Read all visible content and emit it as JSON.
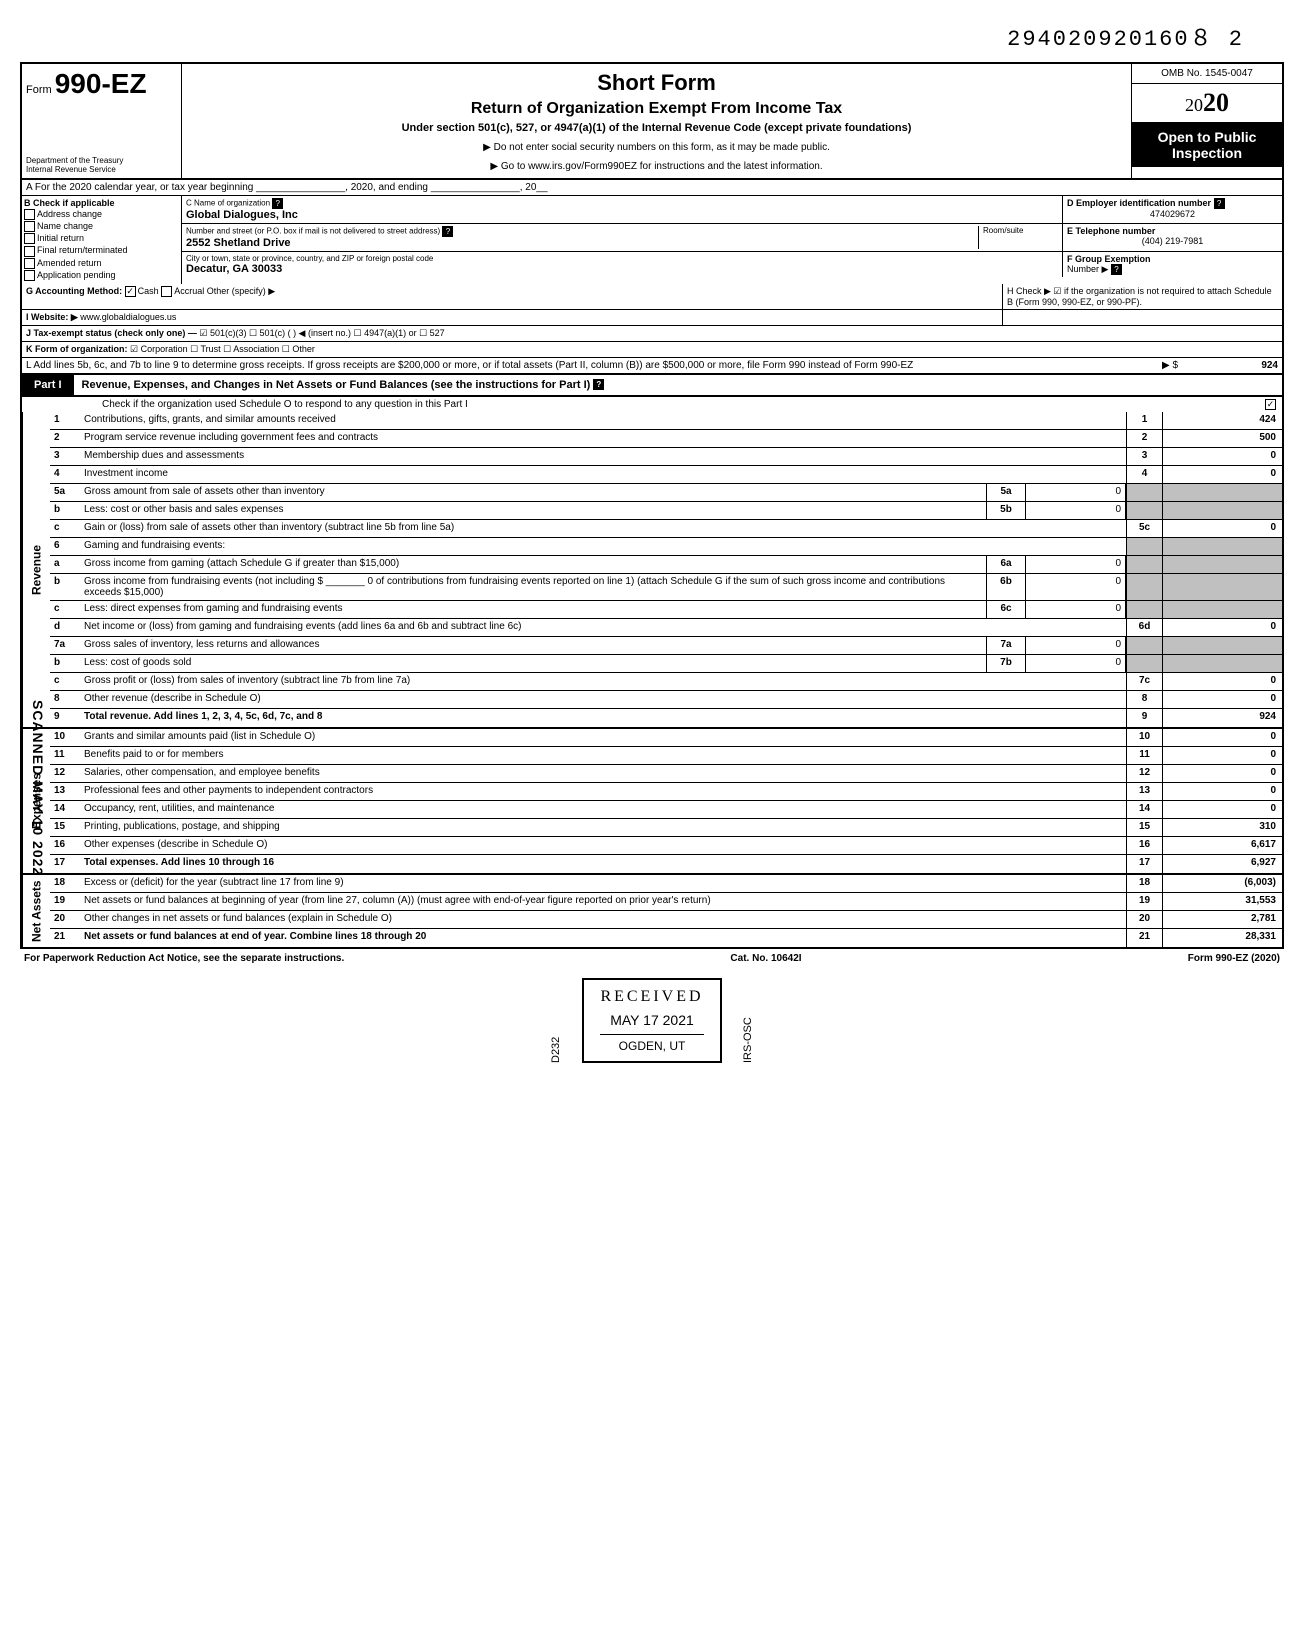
{
  "doc_number": "294020920160８ 2",
  "header": {
    "form_prefix": "Form",
    "form_number": "990-EZ",
    "title": "Short Form",
    "subtitle": "Return of Organization Exempt From Income Tax",
    "under": "Under section 501(c), 527, or 4947(a)(1) of the Internal Revenue Code (except private foundations)",
    "note1": "▶ Do not enter social security numbers on this form, as it may be made public.",
    "note2": "▶ Go to www.irs.gov/Form990EZ for instructions and the latest information.",
    "dept": "Department of the Treasury\nInternal Revenue Service",
    "omb": "OMB No. 1545-0047",
    "year": "2020",
    "year_prefix": "20",
    "open_public": "Open to Public Inspection"
  },
  "row_a": "A For the 2020 calendar year, or tax year beginning ________________, 2020, and ending ________________, 20__",
  "section_b": {
    "title": "B Check if applicable",
    "items": [
      "Address change",
      "Name change",
      "Initial return",
      "Final return/terminated",
      "Amended return",
      "Application pending"
    ]
  },
  "org": {
    "c_label": "C Name of organization",
    "c_value": "Global Dialogues, Inc",
    "addr_label": "Number and street (or P.O. box if mail is not delivered to street address)",
    "addr_value": "2552 Shetland Drive",
    "room_label": "Room/suite",
    "city_label": "City or town, state or province, country, and ZIP or foreign postal code",
    "city_value": "Decatur, GA 30033",
    "d_label": "D Employer identification number",
    "d_value": "474029672",
    "e_label": "E Telephone number",
    "e_value": "(404) 219-7981",
    "f_label": "F Group Exemption",
    "f_label2": "Number ▶"
  },
  "row_g": {
    "label": "G Accounting Method:",
    "cash": "Cash",
    "accrual": "Accrual",
    "other": "Other (specify) ▶"
  },
  "row_h": {
    "text": "H Check ▶ ☑ if the organization is not required to attach Schedule B (Form 990, 990-EZ, or 990-PF)."
  },
  "row_i": {
    "label": "I Website: ▶",
    "value": "www.globaldialogues.us"
  },
  "row_j": {
    "label": "J Tax-exempt status (check only one) —",
    "opts": "☑ 501(c)(3)   ☐ 501(c) (   ) ◀ (insert no.)  ☐ 4947(a)(1) or  ☐ 527"
  },
  "row_k": {
    "label": "K Form of organization:",
    "opts": "☑ Corporation   ☐ Trust   ☐ Association   ☐ Other"
  },
  "row_l": {
    "text": "L Add lines 5b, 6c, and 7b to line 9 to determine gross receipts. If gross receipts are $200,000 or more, or if total assets (Part II, column (B)) are $500,000 or more, file Form 990 instead of Form 990-EZ",
    "value": "924"
  },
  "part1": {
    "label": "Part I",
    "title": "Revenue, Expenses, and Changes in Net Assets or Fund Balances (see the instructions for Part I)",
    "sub": "Check if the organization used Schedule O to respond to any question in this Part I"
  },
  "scanned": "SCANNED MAY 10 2022",
  "sections": {
    "revenue": "Revenue",
    "expenses": "Expenses",
    "netassets": "Net Assets"
  },
  "lines": [
    {
      "n": "1",
      "d": "Contributions, gifts, grants, and similar amounts received",
      "b": "1",
      "v": "424"
    },
    {
      "n": "2",
      "d": "Program service revenue including government fees and contracts",
      "b": "2",
      "v": "500"
    },
    {
      "n": "3",
      "d": "Membership dues and assessments",
      "b": "3",
      "v": "0"
    },
    {
      "n": "4",
      "d": "Investment income",
      "b": "4",
      "v": "0"
    },
    {
      "n": "5a",
      "d": "Gross amount from sale of assets other than inventory",
      "mb": "5a",
      "mv": "0"
    },
    {
      "n": "b",
      "d": "Less: cost or other basis and sales expenses",
      "mb": "5b",
      "mv": "0"
    },
    {
      "n": "c",
      "d": "Gain or (loss) from sale of assets other than inventory (subtract line 5b from line 5a)",
      "b": "5c",
      "v": "0"
    },
    {
      "n": "6",
      "d": "Gaming and fundraising events:"
    },
    {
      "n": "a",
      "d": "Gross income from gaming (attach Schedule G if greater than $15,000)",
      "mb": "6a",
      "mv": "0"
    },
    {
      "n": "b",
      "d": "Gross income from fundraising events (not including  $ _______ 0 of contributions from fundraising events reported on line 1) (attach Schedule G if the sum of such gross income and contributions exceeds $15,000)",
      "mb": "6b",
      "mv": "0"
    },
    {
      "n": "c",
      "d": "Less: direct expenses from gaming and fundraising events",
      "mb": "6c",
      "mv": "0"
    },
    {
      "n": "d",
      "d": "Net income or (loss) from gaming and fundraising events (add lines 6a and 6b and subtract line 6c)",
      "b": "6d",
      "v": "0"
    },
    {
      "n": "7a",
      "d": "Gross sales of inventory, less returns and allowances",
      "mb": "7a",
      "mv": "0"
    },
    {
      "n": "b",
      "d": "Less: cost of goods sold",
      "mb": "7b",
      "mv": "0"
    },
    {
      "n": "c",
      "d": "Gross profit or (loss) from sales of inventory (subtract line 7b from line 7a)",
      "b": "7c",
      "v": "0"
    },
    {
      "n": "8",
      "d": "Other revenue (describe in Schedule O)",
      "b": "8",
      "v": "0"
    },
    {
      "n": "9",
      "d": "Total revenue. Add lines 1, 2, 3, 4, 5c, 6d, 7c, and 8",
      "b": "9",
      "v": "924",
      "bold": true
    },
    {
      "n": "10",
      "d": "Grants and similar amounts paid (list in Schedule O)",
      "b": "10",
      "v": "0"
    },
    {
      "n": "11",
      "d": "Benefits paid to or for members",
      "b": "11",
      "v": "0"
    },
    {
      "n": "12",
      "d": "Salaries, other compensation, and employee benefits",
      "b": "12",
      "v": "0"
    },
    {
      "n": "13",
      "d": "Professional fees and other payments to independent contractors",
      "b": "13",
      "v": "0"
    },
    {
      "n": "14",
      "d": "Occupancy, rent, utilities, and maintenance",
      "b": "14",
      "v": "0"
    },
    {
      "n": "15",
      "d": "Printing, publications, postage, and shipping",
      "b": "15",
      "v": "310"
    },
    {
      "n": "16",
      "d": "Other expenses (describe in Schedule O)",
      "b": "16",
      "v": "6,617"
    },
    {
      "n": "17",
      "d": "Total expenses. Add lines 10 through 16",
      "b": "17",
      "v": "6,927",
      "bold": true
    },
    {
      "n": "18",
      "d": "Excess or (deficit) for the year (subtract line 17 from line 9)",
      "b": "18",
      "v": "(6,003)"
    },
    {
      "n": "19",
      "d": "Net assets or fund balances at beginning of year (from line 27, column (A)) (must agree with end-of-year figure reported on prior year's return)",
      "b": "19",
      "v": "31,553"
    },
    {
      "n": "20",
      "d": "Other changes in net assets or fund balances (explain in Schedule O)",
      "b": "20",
      "v": "2,781"
    },
    {
      "n": "21",
      "d": "Net assets or fund balances at end of year. Combine lines 18 through 20",
      "b": "21",
      "v": "28,331",
      "bold": true
    }
  ],
  "footer": {
    "left": "For Paperwork Reduction Act Notice, see the separate instructions.",
    "cat": "Cat. No. 10642I",
    "right": "Form 990-EZ (2020)"
  },
  "stamps": {
    "received": "RECEIVED",
    "d232": "D232",
    "date": "MAY 17 2021",
    "irs": "IRS-OSC",
    "ogden": "OGDEN, UT"
  }
}
